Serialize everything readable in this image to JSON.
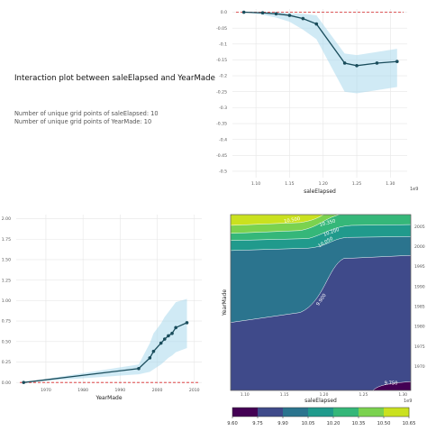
{
  "info_panel": {
    "title": "Interaction plot between saleElapsed and YearMade",
    "line1": "Number of unique grid points of saleElapsed: 10",
    "line2": "Number of unique grid points of YearMade: 10"
  },
  "chart_data": [
    {
      "id": "pdp-saleElapsed",
      "type": "line",
      "xlabel": "saleElapsed",
      "x_offset_text": "1e9",
      "x_scale": 1000000000,
      "xlim": [
        1.065,
        1.325
      ],
      "ylim": [
        -0.52,
        0.01
      ],
      "x_ticks": [
        1.1,
        1.15,
        1.2,
        1.25,
        1.3
      ],
      "x_tick_labels": [
        "1.10",
        "1.15",
        "1.20",
        "1.25",
        "1.30"
      ],
      "y_ticks": [
        0.0,
        -0.05,
        -0.1,
        -0.15,
        -0.2,
        -0.25,
        -0.3,
        -0.35,
        -0.4,
        -0.45,
        -0.5
      ],
      "y_tick_labels": [
        "0.0",
        "-0.05",
        "-0.1",
        "-0.15",
        "-0.2",
        "-0.25",
        "-0.3",
        "-0.35",
        "-0.4",
        "-0.45",
        "-0.5"
      ],
      "grid": true,
      "x": [
        1.082,
        1.11,
        1.13,
        1.15,
        1.17,
        1.19,
        1.232,
        1.25,
        1.28,
        1.31
      ],
      "y": [
        0.0,
        -0.002,
        -0.005,
        -0.01,
        -0.02,
        -0.037,
        -0.16,
        -0.168,
        -0.16,
        -0.155
      ],
      "band_upper": [
        0.0,
        0.0,
        0.0,
        -0.003,
        -0.005,
        -0.01,
        -0.13,
        -0.135,
        -0.125,
        -0.115
      ],
      "band_lower": [
        0.0,
        -0.008,
        -0.017,
        -0.03,
        -0.055,
        -0.085,
        -0.25,
        -0.255,
        -0.245,
        -0.235
      ],
      "reference_line": 0.0,
      "colors": {
        "line": "#1a4d5c",
        "band": "#a9d8ec",
        "reference": "#d62728"
      }
    },
    {
      "id": "pdp-YearMade",
      "type": "line",
      "xlabel": "YearMade",
      "xlim": [
        1962,
        2012
      ],
      "ylim": [
        -0.02,
        2.05
      ],
      "x_ticks": [
        1970,
        1980,
        1990,
        2000,
        2010
      ],
      "x_tick_labels": [
        "1970",
        "1980",
        "1990",
        "2000",
        "2010"
      ],
      "y_ticks": [
        0.0,
        0.25,
        0.5,
        0.75,
        1.0,
        1.25,
        1.5,
        1.75,
        2.0
      ],
      "y_tick_labels": [
        "0.00",
        "0.25",
        "0.50",
        "0.75",
        "1.00",
        "1.25",
        "1.50",
        "1.75",
        "2.00"
      ],
      "grid": true,
      "x": [
        1964,
        1995,
        1998,
        1999,
        2001,
        2002,
        2003,
        2004,
        2005,
        2008
      ],
      "y": [
        0.0,
        0.17,
        0.3,
        0.38,
        0.48,
        0.53,
        0.57,
        0.6,
        0.67,
        0.73
      ],
      "band_upper": [
        0.0,
        0.22,
        0.48,
        0.6,
        0.72,
        0.8,
        0.86,
        0.92,
        0.98,
        1.02
      ],
      "band_lower": [
        0.0,
        0.1,
        0.13,
        0.16,
        0.22,
        0.26,
        0.3,
        0.33,
        0.37,
        0.42
      ],
      "reference_line": 0.0,
      "colors": {
        "line": "#1a4d5c",
        "band": "#a9d8ec",
        "reference": "#d62728"
      }
    },
    {
      "id": "interaction-contour",
      "type": "heatmap",
      "style": "filled-contour",
      "xlabel": "saleElapsed",
      "ylabel": "YearMade",
      "x_offset_text": "1e9",
      "xlim": [
        1.082,
        1.31
      ],
      "ylim": [
        1964,
        2008
      ],
      "x_ticks": [
        1.1,
        1.15,
        1.2,
        1.25,
        1.3
      ],
      "x_tick_labels": [
        "1.10",
        "1.15",
        "1.20",
        "1.25",
        "1.30"
      ],
      "y_ticks": [
        1970,
        1975,
        1980,
        1985,
        1990,
        1995,
        2000,
        2005
      ],
      "y_tick_labels": [
        "1970",
        "1975",
        "1980",
        "1985",
        "1990",
        "1995",
        "2000",
        "2005"
      ],
      "levels": [
        9.6,
        9.75,
        9.9,
        10.05,
        10.2,
        10.35,
        10.5,
        10.65
      ],
      "level_colors": [
        "#440154",
        "#3f4a8a",
        "#2b748e",
        "#209a8c",
        "#35b779",
        "#7bd24f",
        "#cae11f"
      ],
      "contour_labels": [
        "9.750",
        "9.900",
        "10.050",
        "10.200",
        "10.350",
        "10.500"
      ],
      "colorbar_tick_labels": [
        "9.60",
        "9.75",
        "9.90",
        "10.05",
        "10.20",
        "10.35",
        "10.50",
        "10.65"
      ],
      "colorbar_placement": "bottom"
    }
  ]
}
